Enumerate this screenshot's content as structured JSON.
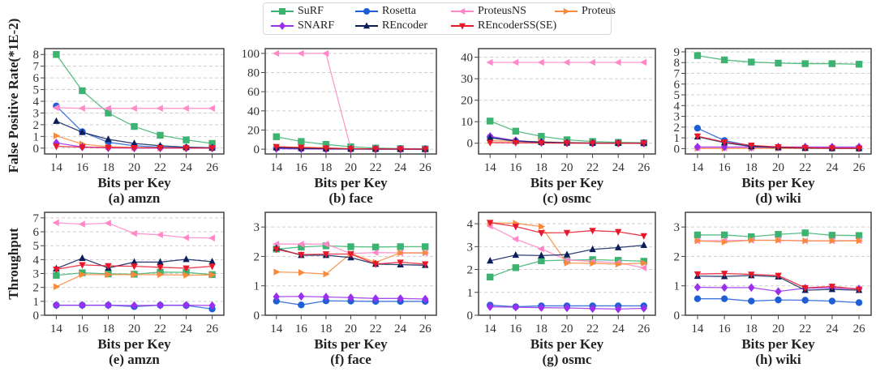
{
  "legend": [
    {
      "name": "SuRF",
      "color": "#3cb371",
      "marker": "square"
    },
    {
      "name": "Rosetta",
      "color": "#1f5fd6",
      "marker": "circle"
    },
    {
      "name": "ProteusNS",
      "color": "#ff88c8",
      "marker": "triangle-left"
    },
    {
      "name": "Proteus",
      "color": "#f98a3c",
      "marker": "triangle-right"
    },
    {
      "name": "SNARF",
      "color": "#9b2ff0",
      "marker": "diamond"
    },
    {
      "name": "REncoder",
      "color": "#0b1e5a",
      "marker": "triangle-up"
    },
    {
      "name": "REncoderSS(SE)",
      "color": "#e8182a",
      "marker": "triangle-down"
    }
  ],
  "chart_data": [
    {
      "type": "line",
      "panel": "(a) amzn",
      "title": "(a) amzn",
      "xlabel": "Bits per Key",
      "ylabel": "False Positive Rate(*1E-2)",
      "x": [
        14,
        16,
        18,
        20,
        22,
        24,
        26
      ],
      "ylim": [
        -0.5,
        8.5
      ],
      "yticks": [
        0,
        1,
        2,
        3,
        4,
        5,
        6,
        7,
        8
      ],
      "grid": true,
      "series": [
        {
          "name": "SuRF",
          "values": [
            8.0,
            4.9,
            3.0,
            1.85,
            1.1,
            0.7,
            0.4
          ]
        },
        {
          "name": "Rosetta",
          "values": [
            3.6,
            1.4,
            0.5,
            0.2,
            0.08,
            0.03,
            0.01
          ]
        },
        {
          "name": "ProteusNS",
          "values": [
            3.45,
            3.4,
            3.4,
            3.4,
            3.4,
            3.4,
            3.4
          ]
        },
        {
          "name": "Proteus",
          "values": [
            1.05,
            0.35,
            0.12,
            0.05,
            0.02,
            0.01,
            0.01
          ]
        },
        {
          "name": "SNARF",
          "values": [
            0.45,
            0.1,
            0.02,
            0.0,
            0.0,
            0.0,
            0.0
          ]
        },
        {
          "name": "REncoder",
          "values": [
            2.3,
            1.35,
            0.75,
            0.4,
            0.2,
            0.08,
            0.03
          ]
        },
        {
          "name": "REncoderSS(SE)",
          "values": [
            0.15,
            0.08,
            0.05,
            0.03,
            0.02,
            0.01,
            0.01
          ]
        }
      ]
    },
    {
      "type": "line",
      "panel": "(b) face",
      "title": "(b) face",
      "xlabel": "Bits per Key",
      "ylabel": "",
      "x": [
        14,
        16,
        18,
        20,
        22,
        24,
        26
      ],
      "ylim": [
        -5,
        105
      ],
      "yticks": [
        0,
        20,
        40,
        60,
        80,
        100
      ],
      "grid": true,
      "series": [
        {
          "name": "SuRF",
          "values": [
            13,
            8,
            5,
            2.5,
            1.2,
            0.6,
            0.3
          ]
        },
        {
          "name": "Rosetta",
          "values": [
            1.5,
            0.8,
            0.5,
            0.3,
            0.1,
            0.05,
            0.02
          ]
        },
        {
          "name": "ProteusNS",
          "values": [
            100,
            100,
            100,
            0.5,
            0.3,
            0.2,
            0.1
          ]
        },
        {
          "name": "Proteus",
          "values": [
            2.5,
            2.0,
            1.5,
            0.3,
            0.1,
            0.05,
            0.02
          ]
        },
        {
          "name": "SNARF",
          "values": [
            0.5,
            0.2,
            0.1,
            0.05,
            0.02,
            0.01,
            0.0
          ]
        },
        {
          "name": "REncoder",
          "values": [
            1.5,
            0.9,
            0.5,
            0.3,
            0.15,
            0.08,
            0.04
          ]
        },
        {
          "name": "REncoderSS(SE)",
          "values": [
            2.5,
            1.8,
            1.0,
            0.5,
            0.3,
            0.15,
            0.08
          ]
        }
      ]
    },
    {
      "type": "line",
      "panel": "(c) osmc",
      "title": "(c) osmc",
      "xlabel": "Bits per Key",
      "ylabel": "",
      "x": [
        14,
        16,
        18,
        20,
        22,
        24,
        26
      ],
      "ylim": [
        -5,
        44
      ],
      "yticks": [
        0,
        10,
        20,
        30,
        40
      ],
      "grid": true,
      "series": [
        {
          "name": "SuRF",
          "values": [
            10.3,
            5.6,
            3.2,
            1.6,
            0.8,
            0.4,
            0.2
          ]
        },
        {
          "name": "Rosetta",
          "values": [
            2.8,
            1.0,
            0.4,
            0.15,
            0.05,
            0.02,
            0.01
          ]
        },
        {
          "name": "ProteusNS",
          "values": [
            37.6,
            37.6,
            37.6,
            37.6,
            37.6,
            37.6,
            37.6
          ]
        },
        {
          "name": "Proteus",
          "values": [
            1.2,
            0.9,
            0.7,
            0.3,
            0.1,
            0.05,
            0.02
          ]
        },
        {
          "name": "SNARF",
          "values": [
            3.2,
            1.2,
            0.4,
            0.1,
            0.0,
            0.0,
            0.0
          ]
        },
        {
          "name": "REncoder",
          "values": [
            2.5,
            1.0,
            0.5,
            0.2,
            0.1,
            0.05,
            0.02
          ]
        },
        {
          "name": "REncoderSS(SE)",
          "values": [
            0.3,
            0.2,
            0.1,
            0.05,
            0.03,
            0.02,
            0.01
          ]
        }
      ]
    },
    {
      "type": "line",
      "panel": "(d) wiki",
      "title": "(d) wiki",
      "xlabel": "Bits per Key",
      "ylabel": "",
      "x": [
        14,
        16,
        18,
        20,
        22,
        24,
        26
      ],
      "ylim": [
        -0.5,
        9.3
      ],
      "yticks": [
        0,
        1,
        2,
        3,
        4,
        5,
        6,
        7,
        8,
        9
      ],
      "grid": true,
      "series": [
        {
          "name": "SuRF",
          "values": [
            8.65,
            8.25,
            8.05,
            7.95,
            7.9,
            7.9,
            7.85
          ]
        },
        {
          "name": "Rosetta",
          "values": [
            1.9,
            0.75,
            0.25,
            0.12,
            0.06,
            0.03,
            0.02
          ]
        },
        {
          "name": "ProteusNS",
          "values": [
            0.05,
            0.05,
            0.05,
            0.05,
            0.05,
            0.05,
            0.05
          ]
        },
        {
          "name": "Proteus",
          "values": [
            0.02,
            0.02,
            0.02,
            0.02,
            0.02,
            0.02,
            0.02
          ]
        },
        {
          "name": "SNARF",
          "values": [
            0.15,
            0.15,
            0.15,
            0.15,
            0.15,
            0.15,
            0.15
          ]
        },
        {
          "name": "REncoder",
          "values": [
            1.1,
            0.55,
            0.2,
            0.1,
            0.05,
            0.03,
            0.02
          ]
        },
        {
          "name": "REncoderSS(SE)",
          "values": [
            1.15,
            0.6,
            0.3,
            0.15,
            0.08,
            0.05,
            0.03
          ]
        }
      ]
    },
    {
      "type": "line",
      "panel": "(e) amzn",
      "title": "(e) amzn",
      "xlabel": "Bits per Key",
      "ylabel": "Throughput",
      "x": [
        14,
        16,
        18,
        20,
        22,
        24,
        26
      ],
      "ylim": [
        0,
        7.4
      ],
      "yticks": [
        0,
        1,
        2,
        3,
        4,
        5,
        6,
        7
      ],
      "grid": true,
      "series": [
        {
          "name": "SuRF",
          "values": [
            2.87,
            3.05,
            2.97,
            2.95,
            3.1,
            3.08,
            2.92
          ]
        },
        {
          "name": "Rosetta",
          "values": [
            0.72,
            0.72,
            0.72,
            0.62,
            0.72,
            0.7,
            0.45
          ]
        },
        {
          "name": "ProteusNS",
          "values": [
            6.65,
            6.55,
            6.62,
            5.88,
            5.78,
            5.58,
            5.55
          ]
        },
        {
          "name": "Proteus",
          "values": [
            2.05,
            2.92,
            2.92,
            2.92,
            2.92,
            2.88,
            2.9
          ]
        },
        {
          "name": "SNARF",
          "values": [
            0.72,
            0.72,
            0.72,
            0.7,
            0.72,
            0.72,
            0.7
          ]
        },
        {
          "name": "REncoder",
          "values": [
            3.35,
            4.1,
            3.4,
            3.82,
            3.82,
            4.02,
            3.85
          ]
        },
        {
          "name": "REncoderSS(SE)",
          "values": [
            3.3,
            3.62,
            3.55,
            3.52,
            3.45,
            3.38,
            3.52
          ]
        }
      ]
    },
    {
      "type": "line",
      "panel": "(f) face",
      "title": "(f) face",
      "xlabel": "Bits per Key",
      "ylabel": "",
      "x": [
        14,
        16,
        18,
        20,
        22,
        24,
        26
      ],
      "ylim": [
        0,
        3.5
      ],
      "yticks": [
        0,
        1,
        2,
        3
      ],
      "grid": true,
      "series": [
        {
          "name": "SuRF",
          "values": [
            2.25,
            2.32,
            2.36,
            2.33,
            2.32,
            2.33,
            2.33
          ]
        },
        {
          "name": "Rosetta",
          "values": [
            0.48,
            0.35,
            0.49,
            0.48,
            0.47,
            0.47,
            0.47
          ]
        },
        {
          "name": "ProteusNS",
          "values": [
            2.42,
            2.42,
            2.42,
            2.1,
            2.13,
            2.12,
            2.12
          ]
        },
        {
          "name": "Proteus",
          "values": [
            1.47,
            1.45,
            1.4,
            2.1,
            1.8,
            2.12,
            2.12
          ]
        },
        {
          "name": "SNARF",
          "values": [
            0.63,
            0.64,
            0.62,
            0.6,
            0.57,
            0.57,
            0.55
          ]
        },
        {
          "name": "REncoder",
          "values": [
            2.28,
            2.04,
            2.04,
            1.96,
            1.74,
            1.72,
            1.7
          ]
        },
        {
          "name": "REncoderSS(SE)",
          "values": [
            2.24,
            2.06,
            2.08,
            2.08,
            1.74,
            1.8,
            1.74
          ]
        }
      ]
    },
    {
      "type": "line",
      "panel": "(g) osmc",
      "title": "(g) osmc",
      "xlabel": "Bits per Key",
      "ylabel": "",
      "x": [
        14,
        16,
        18,
        20,
        22,
        24,
        26
      ],
      "ylim": [
        0,
        4.5
      ],
      "yticks": [
        0,
        1,
        2,
        3,
        4
      ],
      "grid": true,
      "series": [
        {
          "name": "SuRF",
          "values": [
            1.67,
            2.08,
            2.38,
            2.41,
            2.43,
            2.4,
            2.36
          ]
        },
        {
          "name": "Rosetta",
          "values": [
            0.44,
            0.37,
            0.41,
            0.41,
            0.41,
            0.41,
            0.41
          ]
        },
        {
          "name": "ProteusNS",
          "values": [
            3.9,
            3.33,
            2.9,
            2.42,
            2.35,
            2.3,
            2.07
          ]
        },
        {
          "name": "Proteus",
          "values": [
            4.04,
            4.02,
            3.88,
            2.28,
            2.27,
            2.23,
            2.28
          ]
        },
        {
          "name": "SNARF",
          "values": [
            0.37,
            0.35,
            0.33,
            0.32,
            0.29,
            0.27,
            0.3
          ]
        },
        {
          "name": "REncoder",
          "values": [
            2.38,
            2.63,
            2.61,
            2.65,
            2.88,
            2.96,
            3.06
          ]
        },
        {
          "name": "REncoderSS(SE)",
          "values": [
            4.05,
            3.88,
            3.6,
            3.61,
            3.7,
            3.65,
            3.47
          ]
        }
      ]
    },
    {
      "type": "line",
      "panel": "(h) wiki",
      "title": "(h) wiki",
      "xlabel": "Bits per Key",
      "ylabel": "",
      "x": [
        14,
        16,
        18,
        20,
        22,
        24,
        26
      ],
      "ylim": [
        0,
        3.5
      ],
      "yticks": [
        0,
        1,
        2,
        3
      ],
      "grid": true,
      "series": [
        {
          "name": "SuRF",
          "values": [
            2.73,
            2.73,
            2.67,
            2.75,
            2.8,
            2.72,
            2.71
          ]
        },
        {
          "name": "Rosetta",
          "values": [
            0.56,
            0.56,
            0.48,
            0.52,
            0.51,
            0.48,
            0.43
          ]
        },
        {
          "name": "ProteusNS",
          "values": [
            2.53,
            2.54,
            2.55,
            2.55,
            2.53,
            2.53,
            2.54
          ]
        },
        {
          "name": "Proteus",
          "values": [
            2.53,
            2.49,
            2.55,
            2.55,
            2.53,
            2.53,
            2.53
          ]
        },
        {
          "name": "SNARF",
          "values": [
            0.95,
            0.94,
            0.94,
            0.81,
            0.92,
            0.93,
            0.9
          ]
        },
        {
          "name": "REncoder",
          "values": [
            1.33,
            1.32,
            1.35,
            1.31,
            0.85,
            0.88,
            0.85
          ]
        },
        {
          "name": "REncoderSS(SE)",
          "values": [
            1.4,
            1.42,
            1.39,
            1.35,
            0.93,
            0.98,
            0.88
          ]
        }
      ]
    }
  ]
}
